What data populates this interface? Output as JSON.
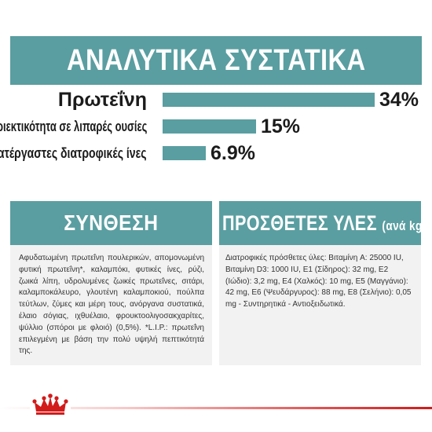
{
  "banner": {
    "title": "ΑΝΑΛΥΤΙΚΑ ΣΥΣΤΑΤΙΚΑ"
  },
  "nutrients": [
    {
      "label": "Πρωτεΐνη",
      "value_text": "34%",
      "value": 34
    },
    {
      "label": "Περιεκτικότητα σε λιπαρές ουσίες",
      "value_text": "15%",
      "value": 15
    },
    {
      "label": "Ακατέργαστες διατροφικές ίνες",
      "value_text": "6.9%",
      "value": 6.9
    }
  ],
  "composition": {
    "title": "ΣΥΝΘΕΣΗ",
    "text": "Αφυδατωμένη πρωτεΐνη πουλερικών, απομονωμένη φυτική πρωτεΐνη*, καλαμπόκι, φυτικές ίνες, ρύζι, ζωικά λίπη, υδρολυμένες ζωικές πρωτεΐνες, σιτάρι, καλαμποκάλευρο, γλουτένη καλαμποκιού, πούλπα τεύτλων, ζύμες και μέρη τους, ανόργανα συστατικά, έλαιο σόγιας, ιχθυέλαιο, φρουκτοολιγοσακχαρίτες, ψύλλιο (σπόροι με φλοιό) (0,5%). *L.I.P.: πρωτεΐνη επιλεγμένη με βάση την πολύ υψηλή πεπτικότητά της."
  },
  "additives": {
    "title": "ΠΡΟΣΘΕΤΕΣ ΥΛΕΣ",
    "subtitle": "(ανά kg)",
    "text": "Διατροφικές πρόσθετες ύλες: Βιταμίνη A: 25000 IU, Βιταμίνη D3: 1000 IU, E1 (Σίδηρος): 32 mg, E2 (Ιώδιο): 3,2 mg, E4 (Χαλκός): 10 mg, E5 (Μαγγάνιο): 42 mg, E6 (Ψευδάργυρος): 88 mg, E8 (Σελήνιο): 0,05 mg - Συντηρητικά - Αντιοξειδωτικά."
  },
  "colors": {
    "accent": "#5a9ea1",
    "panel": "#f2f2f2",
    "brand_red": "#d21b1b"
  },
  "icons": {
    "brand_logo": "crown-logo"
  }
}
